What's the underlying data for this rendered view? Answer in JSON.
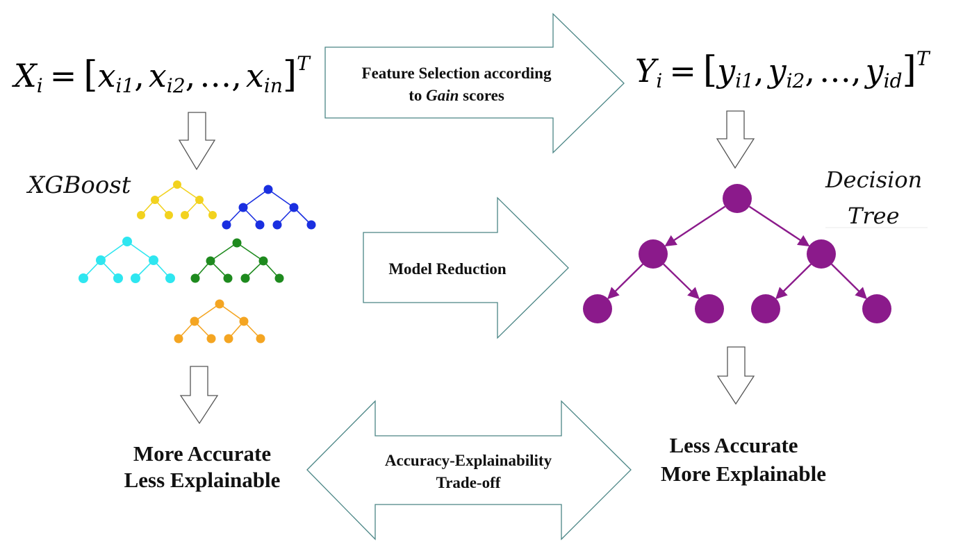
{
  "formulas": {
    "x_vector": {
      "lhs": "X",
      "lhs_sub": "i",
      "terms": [
        {
          "base": "x",
          "sub": "i1"
        },
        {
          "base": "x",
          "sub": "i2"
        },
        {
          "base": "x",
          "sub": "in"
        }
      ],
      "ellipsis": "…",
      "transpose": "T"
    },
    "y_vector": {
      "lhs": "Y",
      "lhs_sub": "i",
      "terms": [
        {
          "base": "y",
          "sub": "i1"
        },
        {
          "base": "y",
          "sub": "i2"
        },
        {
          "base": "y",
          "sub": "id"
        }
      ],
      "ellipsis": "…",
      "transpose": "T"
    }
  },
  "arrows": {
    "feature_selection": {
      "line1": "Feature Selection according",
      "line2_pre": "to ",
      "line2_em": "Gain",
      "line2_post": " scores"
    },
    "model_reduction": {
      "label": "Model Reduction"
    },
    "tradeoff": {
      "line1": "Accuracy-Explainability",
      "line2": "Trade-off"
    }
  },
  "models": {
    "xgboost_label": "XGBoost",
    "decision_tree_label_line1": "Decision",
    "decision_tree_label_line2": "Tree"
  },
  "outcomes": {
    "left": {
      "line1": "More Accurate",
      "line2": "Less Explainable"
    },
    "right": {
      "line1": "Less Accurate",
      "line2": "More Explainable"
    }
  },
  "colors": {
    "tree_yellow": "#f2d21e",
    "tree_blue": "#1a2fe0",
    "tree_cyan": "#2ee6f0",
    "tree_green": "#1e8a1e",
    "tree_orange": "#f4a522",
    "decision_tree": "#8b1a8b",
    "arrow_stroke": "#4a8585"
  }
}
